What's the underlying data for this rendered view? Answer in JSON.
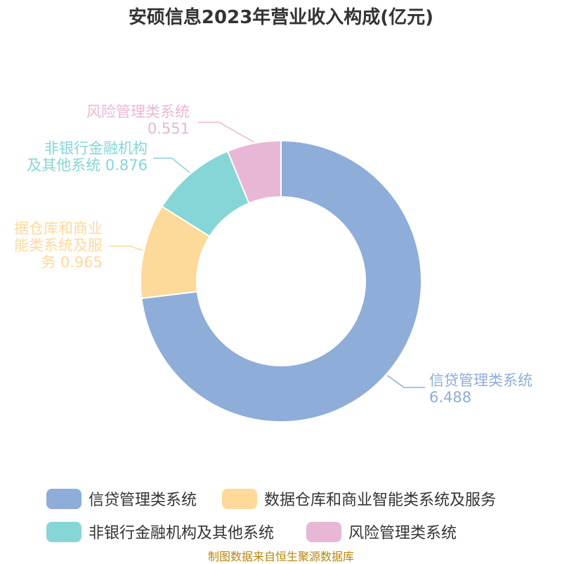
{
  "chart_data": {
    "type": "pie",
    "title": "安硕信息2023年营业收入构成(亿元)",
    "donut": true,
    "slices": [
      {
        "name": "信贷管理类系统",
        "value": 6.488,
        "color": "#8eadd9",
        "label_lines": [
          "信贷管理类系统",
          "6.488"
        ]
      },
      {
        "name": "数据仓库和商业智能类系统及服务",
        "value": 0.965,
        "color": "#fdd99a",
        "label_lines": [
          "据仓库和商业",
          "能类系统及服",
          "务 0.965"
        ]
      },
      {
        "name": "非银行金融机构及其他系统",
        "value": 0.876,
        "color": "#86d5d7",
        "label_lines": [
          "非银行金融机构",
          "及其他系统 0.876"
        ]
      },
      {
        "name": "风险管理类系统",
        "value": 0.551,
        "color": "#e8b7d6",
        "label_lines": [
          "风险管理类系统",
          "0.551"
        ]
      }
    ],
    "legend": {
      "placement": "bottom"
    }
  },
  "footer": {
    "source": "制图数据来自恒生聚源数据库"
  }
}
